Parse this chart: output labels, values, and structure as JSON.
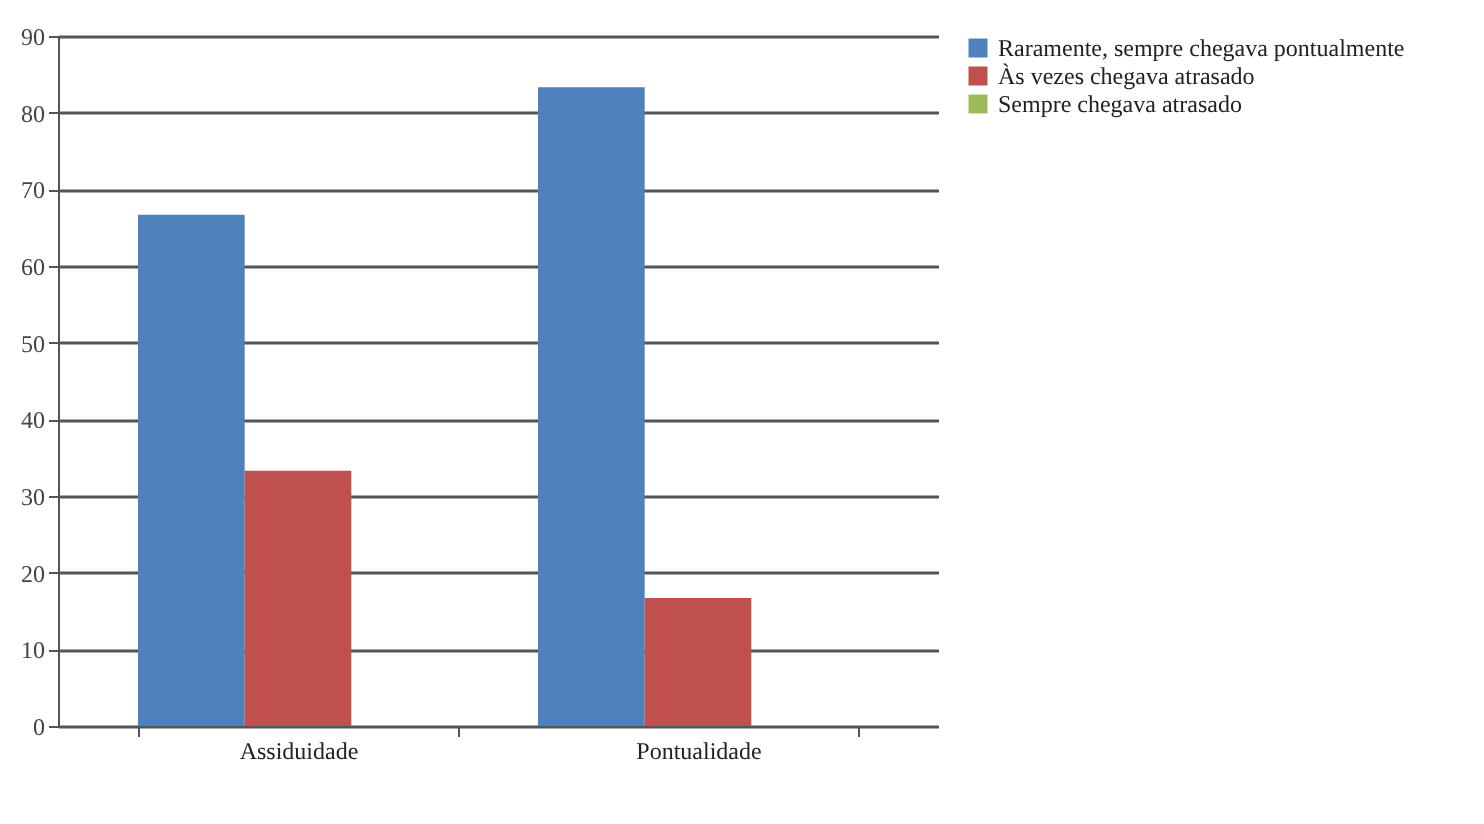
{
  "chart_data": {
    "type": "bar",
    "categories": [
      "Assiduidade",
      "Pontualidade"
    ],
    "series": [
      {
        "name": "Raramente, sempre chegava pontualmente",
        "color": "#4f81bd",
        "values": [
          66.7,
          83.3
        ]
      },
      {
        "name": "Às vezes chegava atrasado",
        "color": "#c0504d",
        "values": [
          33.3,
          16.7
        ]
      },
      {
        "name": "Sempre chegava atrasado",
        "color": "#9bbb59",
        "values": [
          0,
          0
        ]
      }
    ],
    "ylim": [
      0,
      90
    ],
    "yticks": [
      0,
      10,
      20,
      30,
      40,
      50,
      60,
      70,
      80,
      90
    ],
    "grid": "y",
    "legend": "right"
  }
}
